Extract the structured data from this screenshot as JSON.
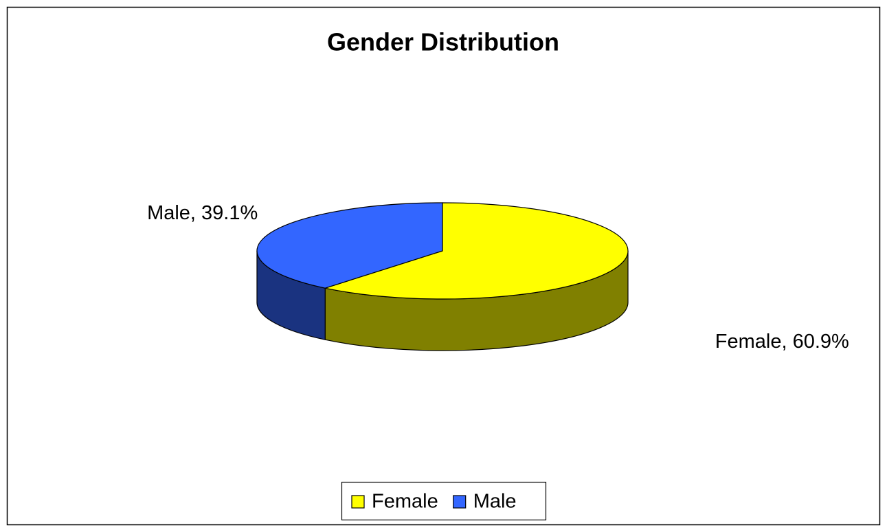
{
  "chart_data": {
    "type": "pie",
    "title": "Gender Distribution",
    "categories": [
      "Female",
      "Male"
    ],
    "values": [
      60.9,
      39.1
    ],
    "value_labels": [
      "Female, 60.9%",
      "Male, 39.1%"
    ],
    "colors": [
      "#ffff00",
      "#3366ff"
    ],
    "side_colors": [
      "#808000",
      "#1a3380"
    ],
    "legend": "bottom"
  }
}
